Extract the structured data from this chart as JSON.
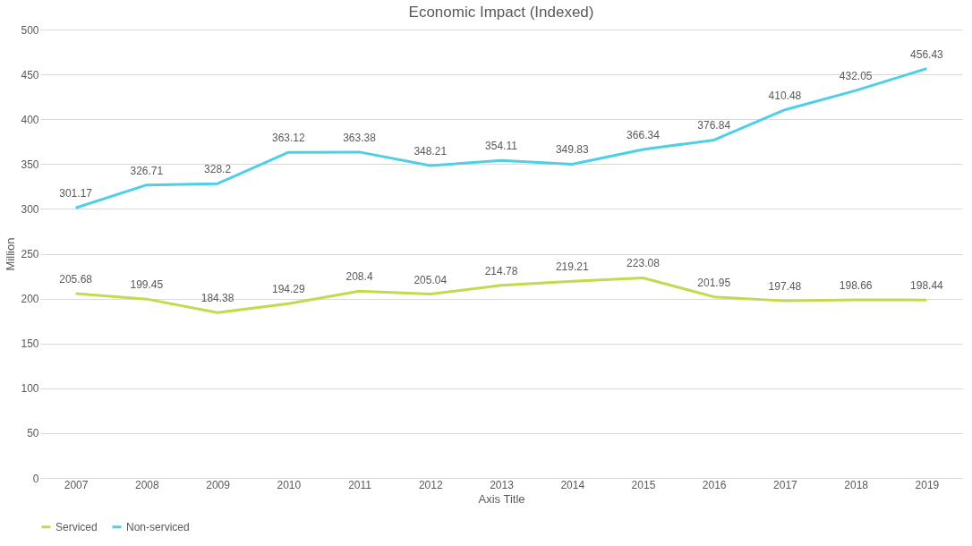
{
  "chart_data": {
    "type": "line",
    "title": "Economic Impact (Indexed)",
    "xlabel": "Axis Title",
    "ylabel": "Million",
    "categories": [
      "2007",
      "2008",
      "2009",
      "2010",
      "2011",
      "2012",
      "2013",
      "2014",
      "2015",
      "2016",
      "2017",
      "2018",
      "2019"
    ],
    "series": [
      {
        "name": "Serviced",
        "color": "#c3d94e",
        "values": [
          205.68,
          199.45,
          184.38,
          194.29,
          208.4,
          205.04,
          214.78,
          219.21,
          223.08,
          201.95,
          197.48,
          198.66,
          198.44
        ]
      },
      {
        "name": "Non-serviced",
        "color": "#4ecfe6",
        "values": [
          301.17,
          326.71,
          328.2,
          363.12,
          363.38,
          348.21,
          354.11,
          349.83,
          366.34,
          376.84,
          410.48,
          432.05,
          456.43
        ]
      }
    ],
    "ylim": [
      0,
      500
    ],
    "yticks": [
      0,
      50,
      100,
      150,
      200,
      250,
      300,
      350,
      400,
      450,
      500
    ],
    "grid": "y",
    "legend": "bottom",
    "marker": "none",
    "line_style": "solid",
    "data_labels": true
  }
}
